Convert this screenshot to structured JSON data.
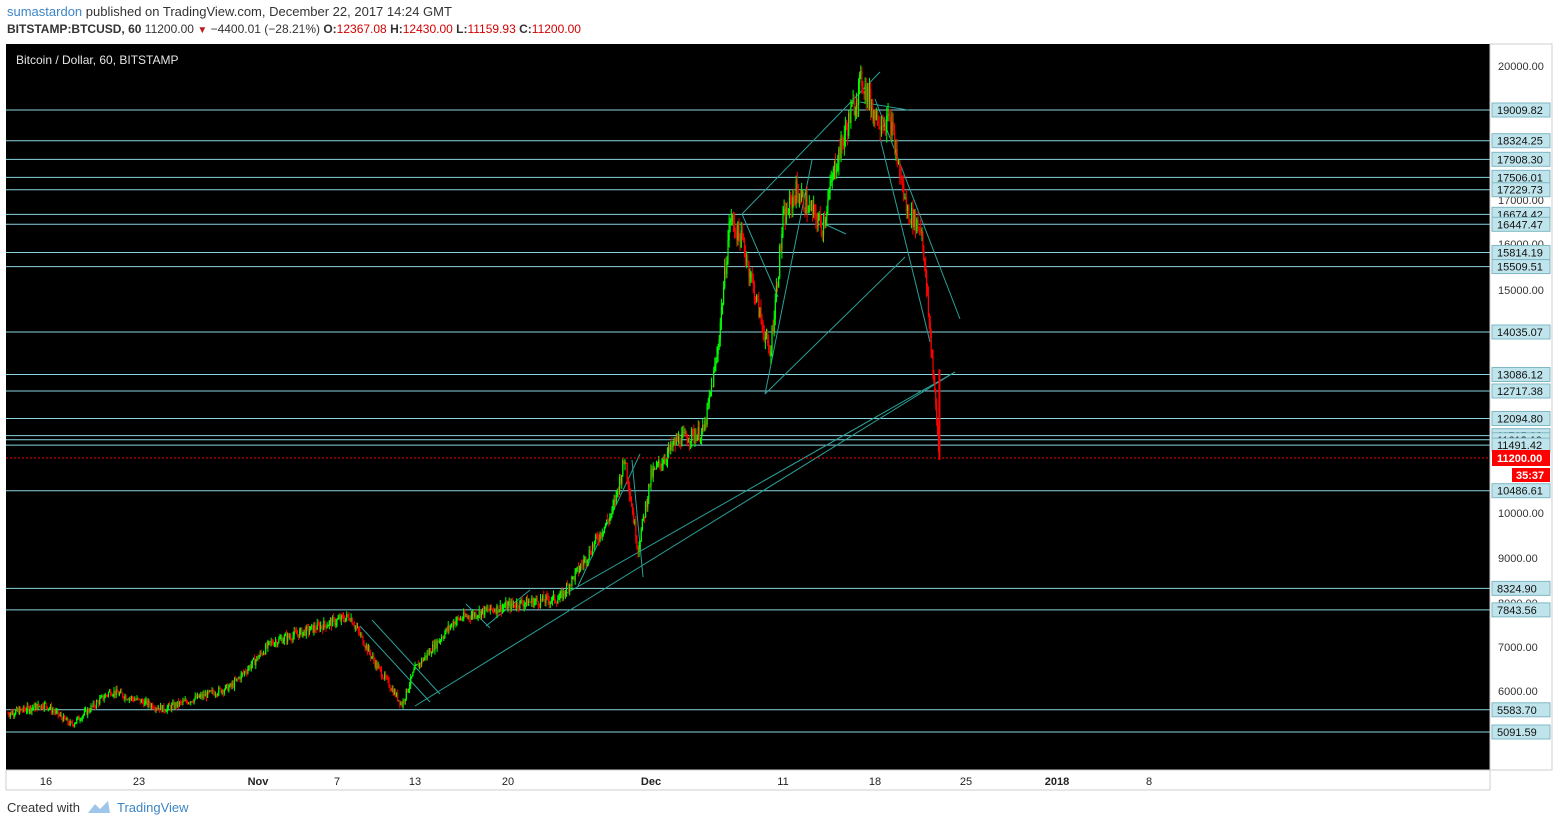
{
  "header": {
    "author": "sumastardon",
    "published_text": "published on TradingView.com, December 22, 2017 14:24 GMT",
    "symbol": "BITSTAMP:BTCUSD, 60",
    "last": "11200.00",
    "change": "−4400.01 (−28.21%)",
    "open_label": "O:",
    "open": "12367.08",
    "high_label": "H:",
    "high": "12430.00",
    "low_label": "L:",
    "low": "11159.93",
    "close_label": "C:",
    "close": "11200.00"
  },
  "footer": {
    "created_with": "Created with",
    "brand": "TradingView"
  },
  "colors": {
    "background": "#000000",
    "up": "#00ff00",
    "down": "#ff0000",
    "level_line": "#8ad4e0",
    "trend_line": "#2aa198",
    "current_price": "#ff0000"
  },
  "chart_data": {
    "type": "candlestick",
    "title": "Bitcoin / Dollar, 60, BITSTAMP",
    "ylim": [
      4800,
      20300
    ],
    "y_ticks": [
      6000,
      7000,
      8000,
      9000,
      10000,
      15000,
      16000,
      17000,
      20000
    ],
    "y_tick_labels": [
      "6000.00",
      "7000.00",
      "8000.00",
      "9000.00",
      "10000.00",
      "15000.00",
      "16000.00",
      "17000.00",
      "20000.00"
    ],
    "x_ticks": [
      "16",
      "23",
      "Nov",
      "7",
      "13",
      "20",
      "Dec",
      "11",
      "18",
      "25",
      "2018",
      "8"
    ],
    "horizontal_levels": [
      19009.82,
      18324.25,
      17908.3,
      17506.01,
      17229.73,
      16674.42,
      16447.47,
      15814.19,
      15509.51,
      14035.07,
      13086.12,
      12717.38,
      12094.8,
      11705.88,
      11613.19,
      11491.42,
      10486.61,
      8324.9,
      7843.56,
      5583.7,
      5091.59
    ],
    "level_labels": [
      "19009.82",
      "18324.25",
      "17908.30",
      "17506.01",
      "17229.73",
      "16674.42",
      "16447.47",
      "15814.19",
      "15509.51",
      "14035.07",
      "13086.12",
      "12717.38",
      "12094.80",
      "11705.88",
      "11613.19",
      "11491.42",
      "10486.61",
      "8324.90",
      "7843.56",
      "5583.70",
      "5091.59"
    ],
    "current_price": 11200.0,
    "current_price_label": "11200.00",
    "countdown": "35:37",
    "price_path": [
      {
        "date": "2017-10-12",
        "price": 5500
      },
      {
        "date": "2017-10-16",
        "price": 5700
      },
      {
        "date": "2017-10-18",
        "price": 5250
      },
      {
        "date": "2017-10-21",
        "price": 6000
      },
      {
        "date": "2017-10-25",
        "price": 5600
      },
      {
        "date": "2017-10-30",
        "price": 6100
      },
      {
        "date": "2017-11-02",
        "price": 7100
      },
      {
        "date": "2017-11-05",
        "price": 7400
      },
      {
        "date": "2017-11-08",
        "price": 7700
      },
      {
        "date": "2017-11-10",
        "price": 6600
      },
      {
        "date": "2017-11-12",
        "price": 5700
      },
      {
        "date": "2017-11-13",
        "price": 6500
      },
      {
        "date": "2017-11-16",
        "price": 7600
      },
      {
        "date": "2017-11-18",
        "price": 7800
      },
      {
        "date": "2017-11-21",
        "price": 8000
      },
      {
        "date": "2017-11-24",
        "price": 8100
      },
      {
        "date": "2017-11-26",
        "price": 9000
      },
      {
        "date": "2017-11-28",
        "price": 10000
      },
      {
        "date": "2017-11-29",
        "price": 11200
      },
      {
        "date": "2017-11-30",
        "price": 9200
      },
      {
        "date": "2017-12-01",
        "price": 10800
      },
      {
        "date": "2017-12-03",
        "price": 11600
      },
      {
        "date": "2017-12-05",
        "price": 11800
      },
      {
        "date": "2017-12-06",
        "price": 13500
      },
      {
        "date": "2017-12-07",
        "price": 16600
      },
      {
        "date": "2017-12-08",
        "price": 16000
      },
      {
        "date": "2017-12-10",
        "price": 13500
      },
      {
        "date": "2017-12-11",
        "price": 16500
      },
      {
        "date": "2017-12-12",
        "price": 17200
      },
      {
        "date": "2017-12-14",
        "price": 16400
      },
      {
        "date": "2017-12-15",
        "price": 17800
      },
      {
        "date": "2017-12-17",
        "price": 19700
      },
      {
        "date": "2017-12-18",
        "price": 18900
      },
      {
        "date": "2017-12-19",
        "price": 18700
      },
      {
        "date": "2017-12-20",
        "price": 16800
      },
      {
        "date": "2017-12-21",
        "price": 16300
      },
      {
        "date": "2017-12-22",
        "price": 13200
      },
      {
        "date": "2017-12-22T14:00",
        "price": 11200
      }
    ]
  }
}
